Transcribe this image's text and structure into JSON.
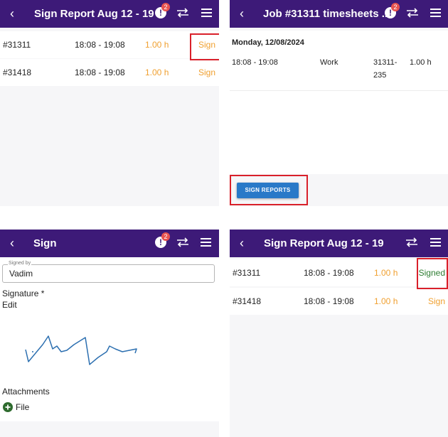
{
  "colors": {
    "header": "#3d1a78",
    "accent": "#f0a030",
    "signed": "#2e7d32",
    "highlight": "#d9202a",
    "button": "#2979c8"
  },
  "panel1": {
    "title": "Sign Report Aug 12 - 19",
    "alert_count": "2",
    "rows": [
      {
        "job": "#31311",
        "time": "18:08 - 19:08",
        "hours": "1.00 h",
        "action": "Sign"
      },
      {
        "job": "#31418",
        "time": "18:08 - 19:08",
        "hours": "1.00 h",
        "action": "Sign"
      }
    ]
  },
  "panel2": {
    "title": "Job #31311 timesheets ...",
    "alert_count": "2",
    "date": "Monday, 12/08/2024",
    "entry": {
      "time": "18:08 - 19:08",
      "type": "Work",
      "code_line1": "31311-",
      "code_line2": "235",
      "hours": "1.00 h"
    },
    "button": "SIGN REPORTS"
  },
  "panel3": {
    "title": "Sign",
    "alert_count": "2",
    "signed_by_label": "Signed by",
    "signed_by_value": "Vadim",
    "signature_label": "Signature *",
    "edit_label": "Edit",
    "attachments_label": "Attachments",
    "file_label": "File"
  },
  "panel4": {
    "title": "Sign Report Aug 12 - 19",
    "rows": [
      {
        "job": "#31311",
        "time": "18:08 - 19:08",
        "hours": "1.00 h",
        "action": "Signed"
      },
      {
        "job": "#31418",
        "time": "18:08 - 19:08",
        "hours": "1.00 h",
        "action": "Sign"
      }
    ]
  },
  "icons": {
    "back": "chevron-left-icon",
    "alert": "alert-icon",
    "swap": "swap-arrows-icon",
    "menu": "hamburger-menu-icon",
    "add": "plus-circle-icon"
  }
}
